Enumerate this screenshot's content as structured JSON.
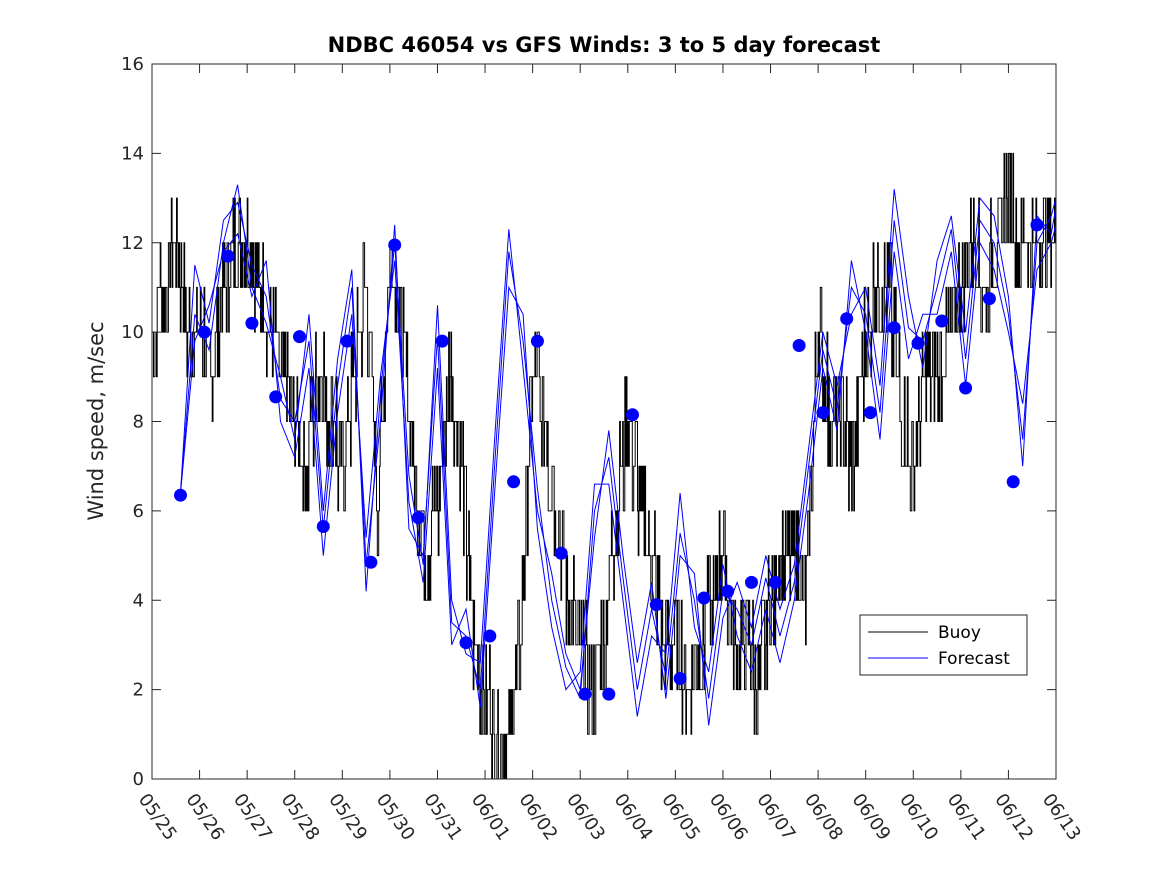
{
  "chart_data": {
    "type": "line",
    "title": "NDBC 46054 vs GFS Winds: 3 to 5 day forecast",
    "xlabel": "",
    "ylabel": "Wind speed, m/sec",
    "xlim": [
      "05/25",
      "06/13"
    ],
    "ylim": [
      0,
      16
    ],
    "x_ticks": [
      "05/25",
      "05/26",
      "05/27",
      "05/28",
      "05/29",
      "05/30",
      "05/31",
      "06/01",
      "06/02",
      "06/03",
      "06/04",
      "06/05",
      "06/06",
      "06/07",
      "06/08",
      "06/09",
      "06/10",
      "06/11",
      "06/12",
      "06/13"
    ],
    "y_ticks": [
      0,
      2,
      4,
      6,
      8,
      10,
      12,
      14,
      16
    ],
    "grid": false,
    "legend": {
      "placement": "lower-right",
      "entries": [
        "Buoy",
        "Forecast"
      ]
    },
    "colors": {
      "buoy": "#000000",
      "forecast": "#0000ff",
      "markers": "#0000ff"
    },
    "series": [
      {
        "name": "Buoy",
        "x_days": [
          0.0,
          0.25,
          0.5,
          0.75,
          1.0,
          1.25,
          1.5,
          1.75,
          2.0,
          2.25,
          2.5,
          2.75,
          3.0,
          3.25,
          3.5,
          3.75,
          4.0,
          4.25,
          4.5,
          4.75,
          5.0,
          5.25,
          5.5,
          5.75,
          6.0,
          6.25,
          6.5,
          6.75,
          7.0,
          7.25,
          7.5,
          7.75,
          8.0,
          8.25,
          8.5,
          8.75,
          9.0,
          9.25,
          9.5,
          9.75,
          10.0,
          10.25,
          10.5,
          10.75,
          11.0,
          11.25,
          11.5,
          11.75,
          12.0,
          12.25,
          12.5,
          12.75,
          13.0,
          13.25,
          13.5,
          13.75,
          14.0,
          14.25,
          14.5,
          14.75,
          15.0,
          15.25,
          15.5,
          15.75,
          16.0,
          16.25,
          16.5,
          16.75,
          17.0,
          17.25,
          17.5,
          17.75,
          18.0,
          18.25,
          18.5,
          18.75,
          19.0
        ],
        "values": [
          10,
          11,
          12,
          10,
          10,
          9,
          11,
          12,
          12,
          11,
          10,
          9,
          8,
          7,
          9,
          8,
          7,
          9,
          11,
          6,
          12,
          10,
          7,
          5,
          6,
          9,
          7,
          3,
          2,
          1,
          1,
          3,
          9,
          8,
          6,
          4,
          3,
          2,
          3,
          6,
          8,
          6,
          5,
          3,
          3,
          2,
          3,
          4,
          5,
          3,
          3,
          2,
          4,
          5,
          5,
          4,
          10,
          8,
          8,
          7,
          10,
          11,
          11,
          8,
          7,
          9,
          9,
          10,
          11,
          12,
          11,
          12,
          13,
          12,
          12,
          12,
          12
        ]
      },
      {
        "name": "Forecast",
        "runs": [
          {
            "x_days": [
              0.6,
              0.9,
              1.2,
              1.5,
              1.8,
              2.1,
              2.4,
              2.7,
              3.0,
              3.3,
              3.6,
              3.9,
              4.2,
              4.5,
              4.8,
              5.1,
              5.4,
              5.7,
              6.0,
              6.3,
              6.6,
              6.9,
              7.2,
              7.5,
              7.8,
              8.1,
              8.4,
              8.7,
              9.0,
              9.3,
              9.6,
              9.9,
              10.2,
              10.5,
              10.8,
              11.1,
              11.4,
              11.7,
              12.0,
              12.3,
              12.6,
              12.9,
              13.2,
              13.5,
              13.8,
              14.1,
              14.4,
              14.7,
              15.0,
              15.3,
              15.6,
              15.9,
              16.2,
              16.5,
              16.8,
              17.1,
              17.4,
              17.7,
              18.0,
              18.3,
              18.6,
              18.9,
              19.0
            ],
            "values": [
              6.4,
              11.5,
              10.2,
              12.5,
              12.9,
              11.5,
              10.8,
              8.5,
              8.0,
              9.8,
              5.6,
              8.8,
              11.0,
              4.8,
              8.0,
              12.4,
              5.6,
              5.0,
              9.9,
              3.5,
              3.2,
              2.0,
              7.0,
              11.8,
              9.8,
              6.5,
              4.0,
              2.5,
              1.8,
              6.0,
              7.2,
              4.5,
              2.0,
              3.8,
              2.3,
              5.5,
              4.0,
              1.8,
              4.2,
              3.8,
              3.0,
              4.5,
              3.2,
              4.4,
              7.0,
              9.6,
              8.3,
              11.0,
              10.4,
              8.2,
              12.5,
              10.1,
              9.8,
              11.0,
              12.3,
              9.4,
              12.5,
              12.0,
              10.4,
              7.6,
              12.0,
              12.6,
              13.0
            ]
          },
          {
            "x_days": [
              0.6,
              0.9,
              1.2,
              1.5,
              1.8,
              2.1,
              2.4,
              2.7,
              3.0,
              3.3,
              3.6,
              3.9,
              4.2,
              4.5,
              4.8,
              5.1,
              5.4,
              5.7,
              6.0,
              6.3,
              6.6,
              6.9,
              7.2,
              7.5,
              7.8,
              8.1,
              8.4,
              8.7,
              9.0,
              9.3,
              9.6,
              9.9,
              10.2,
              10.5,
              10.8,
              11.1,
              11.4,
              11.7,
              12.0,
              12.3,
              12.6,
              12.9,
              13.2,
              13.5,
              13.8,
              14.1,
              14.4,
              14.7,
              15.0,
              15.3,
              15.6,
              15.9,
              16.2,
              16.5,
              16.8,
              17.1,
              17.4,
              17.7,
              18.0,
              18.3,
              18.6,
              18.9,
              19.0
            ],
            "values": [
              6.4,
              9.8,
              10.6,
              11.8,
              12.2,
              10.8,
              11.6,
              8.0,
              7.2,
              9.2,
              5.0,
              8.2,
              10.4,
              5.4,
              9.0,
              11.6,
              6.2,
              4.4,
              9.2,
              3.0,
              3.8,
              1.6,
              6.4,
              11.0,
              10.4,
              5.6,
              3.4,
              2.0,
              2.4,
              6.6,
              6.6,
              4.0,
              1.4,
              3.2,
              2.8,
              6.4,
              3.4,
              2.4,
              4.8,
              3.2,
              2.4,
              3.8,
              2.6,
              4.0,
              6.4,
              9.2,
              7.8,
              11.6,
              10.0,
              7.6,
              11.8,
              9.4,
              10.4,
              10.4,
              11.8,
              8.8,
              12.0,
              11.4,
              10.0,
              8.4,
              11.4,
              12.0,
              12.4
            ]
          },
          {
            "x_days": [
              0.6,
              0.9,
              1.2,
              1.5,
              1.8,
              2.1,
              2.4,
              2.7,
              3.0,
              3.3,
              3.6,
              3.9,
              4.2,
              4.5,
              4.8,
              5.1,
              5.4,
              5.7,
              6.0,
              6.3,
              6.6,
              6.9,
              7.2,
              7.5,
              7.8,
              8.1,
              8.4,
              8.7,
              9.0,
              9.3,
              9.6,
              9.9,
              10.2,
              10.5,
              10.8,
              11.1,
              11.4,
              11.7,
              12.0,
              12.3,
              12.6,
              12.9,
              13.2,
              13.5,
              13.8,
              14.1,
              14.4,
              14.7,
              15.0,
              15.3,
              15.6,
              15.9,
              16.2,
              16.5,
              16.8,
              17.1,
              17.4,
              17.7,
              18.0,
              18.3,
              18.6,
              18.9,
              19.0
            ],
            "values": [
              6.4,
              10.4,
              9.6,
              12.0,
              13.3,
              11.0,
              10.2,
              9.0,
              7.6,
              10.4,
              6.0,
              9.4,
              11.4,
              4.2,
              8.6,
              12.0,
              6.8,
              4.8,
              10.6,
              4.0,
              2.8,
              2.6,
              7.6,
              12.3,
              9.2,
              6.0,
              4.6,
              2.8,
              2.0,
              5.4,
              7.8,
              5.0,
              2.6,
              4.4,
              1.8,
              5.0,
              4.6,
              1.2,
              3.6,
              4.4,
              3.4,
              5.0,
              3.8,
              4.8,
              7.4,
              10.0,
              8.8,
              10.4,
              11.0,
              8.8,
              13.2,
              10.8,
              9.2,
              11.6,
              12.6,
              10.0,
              13.0,
              12.6,
              10.8,
              7.0,
              12.6,
              12.2,
              12.8
            ]
          }
        ]
      },
      {
        "name": "",
        "style": "markers",
        "x_days": [
          0.6,
          1.1,
          1.6,
          2.1,
          2.6,
          3.1,
          3.6,
          4.1,
          4.6,
          5.1,
          5.6,
          6.1,
          6.6,
          7.1,
          7.6,
          8.1,
          8.6,
          9.1,
          9.6,
          10.1,
          10.6,
          11.1,
          11.6,
          12.1,
          12.6,
          13.1,
          13.6,
          14.1,
          14.6,
          15.1,
          15.6,
          16.1,
          16.6,
          17.1,
          17.6,
          18.1,
          18.6
        ],
        "values": [
          6.35,
          10.0,
          11.7,
          10.2,
          8.55,
          9.9,
          5.65,
          9.8,
          4.85,
          11.95,
          5.85,
          9.8,
          3.05,
          3.2,
          6.65,
          9.8,
          5.05,
          1.9,
          1.9,
          8.15,
          3.9,
          2.25,
          4.05,
          4.2,
          4.4,
          4.4,
          9.7,
          8.2,
          10.3,
          8.2,
          10.1,
          9.75,
          10.25,
          8.75,
          10.75,
          6.65,
          12.4
        ]
      }
    ]
  }
}
